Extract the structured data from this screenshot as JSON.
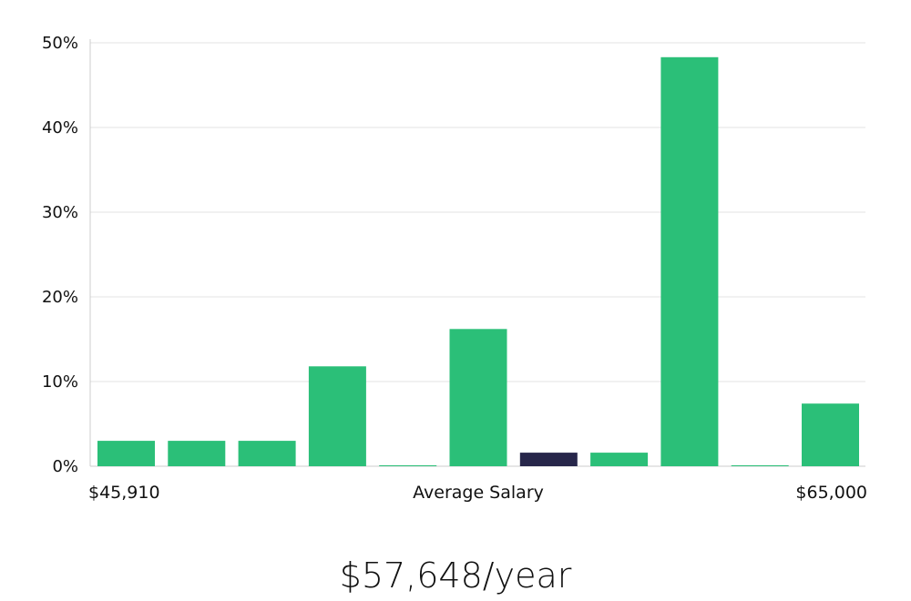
{
  "chart_data": {
    "type": "bar",
    "ylim": [
      0,
      50
    ],
    "y_ticks": [
      "0%",
      "10%",
      "20%",
      "30%",
      "40%",
      "50%"
    ],
    "y_tick_values": [
      0,
      10,
      20,
      30,
      40,
      50
    ],
    "values": [
      3.0,
      3.0,
      3.0,
      11.8,
      0.1,
      16.2,
      1.6,
      1.6,
      48.3,
      0.1,
      7.4
    ],
    "highlight_index": 6,
    "colors": {
      "bar": "#2bbf78",
      "highlight": "#27264a",
      "grid": "#e3e3e3",
      "axis": "#cccccc"
    },
    "x_min_label": "$45,910",
    "x_center_label": "Average Salary",
    "x_max_label": "$65,000",
    "grid": true
  },
  "summary": {
    "value": "$57,648/year"
  }
}
